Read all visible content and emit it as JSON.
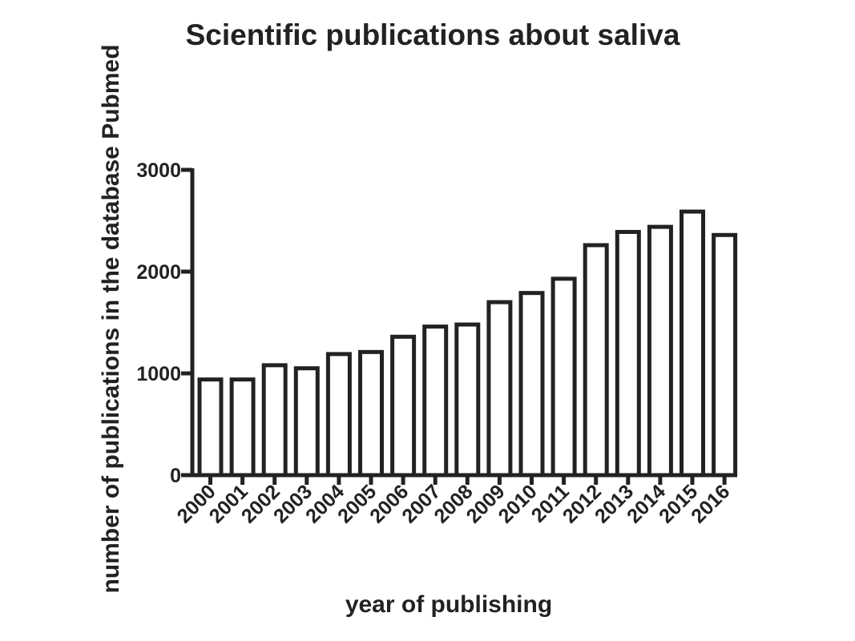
{
  "chart_data": {
    "type": "bar",
    "title": "Scientific publications about saliva",
    "xlabel": "year of publishing",
    "ylabel": "number of publications in the database Pubmed",
    "categories": [
      "2000",
      "2001",
      "2002",
      "2003",
      "2004",
      "2005",
      "2006",
      "2007",
      "2008",
      "2009",
      "2010",
      "2011",
      "2012",
      "2013",
      "2014",
      "2015",
      "2016"
    ],
    "values": [
      940,
      940,
      1080,
      1050,
      1190,
      1210,
      1360,
      1460,
      1480,
      1700,
      1790,
      1930,
      2260,
      2390,
      2440,
      2590,
      2360
    ],
    "ylim": [
      0,
      3000
    ],
    "yticks": [
      0,
      1000,
      2000,
      3000
    ],
    "ytick_labels": [
      "0",
      "1000",
      "2000",
      "3000"
    ],
    "grid": false,
    "legend": "none",
    "colors": {
      "bar_fill": "#ffffff",
      "bar_stroke": "#222222",
      "axis": "#222222",
      "text": "#222222"
    }
  }
}
